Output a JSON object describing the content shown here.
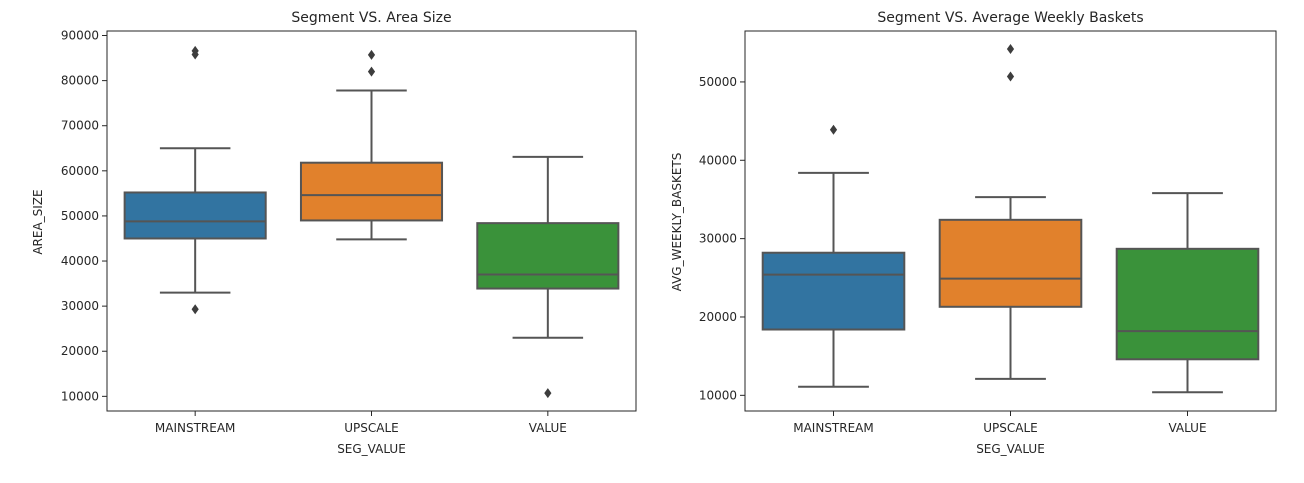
{
  "chart_data": [
    {
      "type": "box",
      "title": "Segment VS. Area Size",
      "xlabel": "SEG_VALUE",
      "ylabel": "AREA_SIZE",
      "categories": [
        "MAINSTREAM",
        "UPSCALE",
        "VALUE"
      ],
      "yticks": [
        10000,
        20000,
        30000,
        40000,
        50000,
        60000,
        70000,
        80000,
        90000
      ],
      "ylim": [
        6750,
        91000
      ],
      "grid": false,
      "boxes": [
        {
          "category": "MAINSTREAM",
          "color": "#3274a1",
          "whislo": 33000,
          "q1": 45000,
          "med": 48800,
          "q3": 55200,
          "whishi": 65000,
          "fliers": [
            29300,
            85800,
            86600
          ]
        },
        {
          "category": "UPSCALE",
          "color": "#e1812c",
          "whislo": 44800,
          "q1": 49000,
          "med": 54600,
          "q3": 61800,
          "whishi": 77800,
          "fliers": [
            82000,
            85700
          ]
        },
        {
          "category": "VALUE",
          "color": "#3a923a",
          "whislo": 23000,
          "q1": 33900,
          "med": 37000,
          "q3": 48400,
          "whishi": 63100,
          "fliers": [
            10700
          ]
        }
      ]
    },
    {
      "type": "box",
      "title": "Segment VS. Average Weekly Baskets",
      "xlabel": "SEG_VALUE",
      "ylabel": "AVG_WEEKLY_BASKETS",
      "categories": [
        "MAINSTREAM",
        "UPSCALE",
        "VALUE"
      ],
      "yticks": [
        10000,
        20000,
        30000,
        40000,
        50000
      ],
      "ylim": [
        8000,
        56500
      ],
      "grid": false,
      "boxes": [
        {
          "category": "MAINSTREAM",
          "color": "#3274a1",
          "whislo": 11100,
          "q1": 18400,
          "med": 25400,
          "q3": 28200,
          "whishi": 38400,
          "fliers": [
            43900
          ]
        },
        {
          "category": "UPSCALE",
          "color": "#e1812c",
          "whislo": 12100,
          "q1": 21300,
          "med": 24900,
          "q3": 32400,
          "whishi": 35300,
          "fliers": [
            50700,
            54200
          ]
        },
        {
          "category": "VALUE",
          "color": "#3a923a",
          "whislo": 10400,
          "q1": 14600,
          "med": 18200,
          "q3": 28700,
          "whishi": 35800,
          "fliers": []
        }
      ]
    }
  ]
}
